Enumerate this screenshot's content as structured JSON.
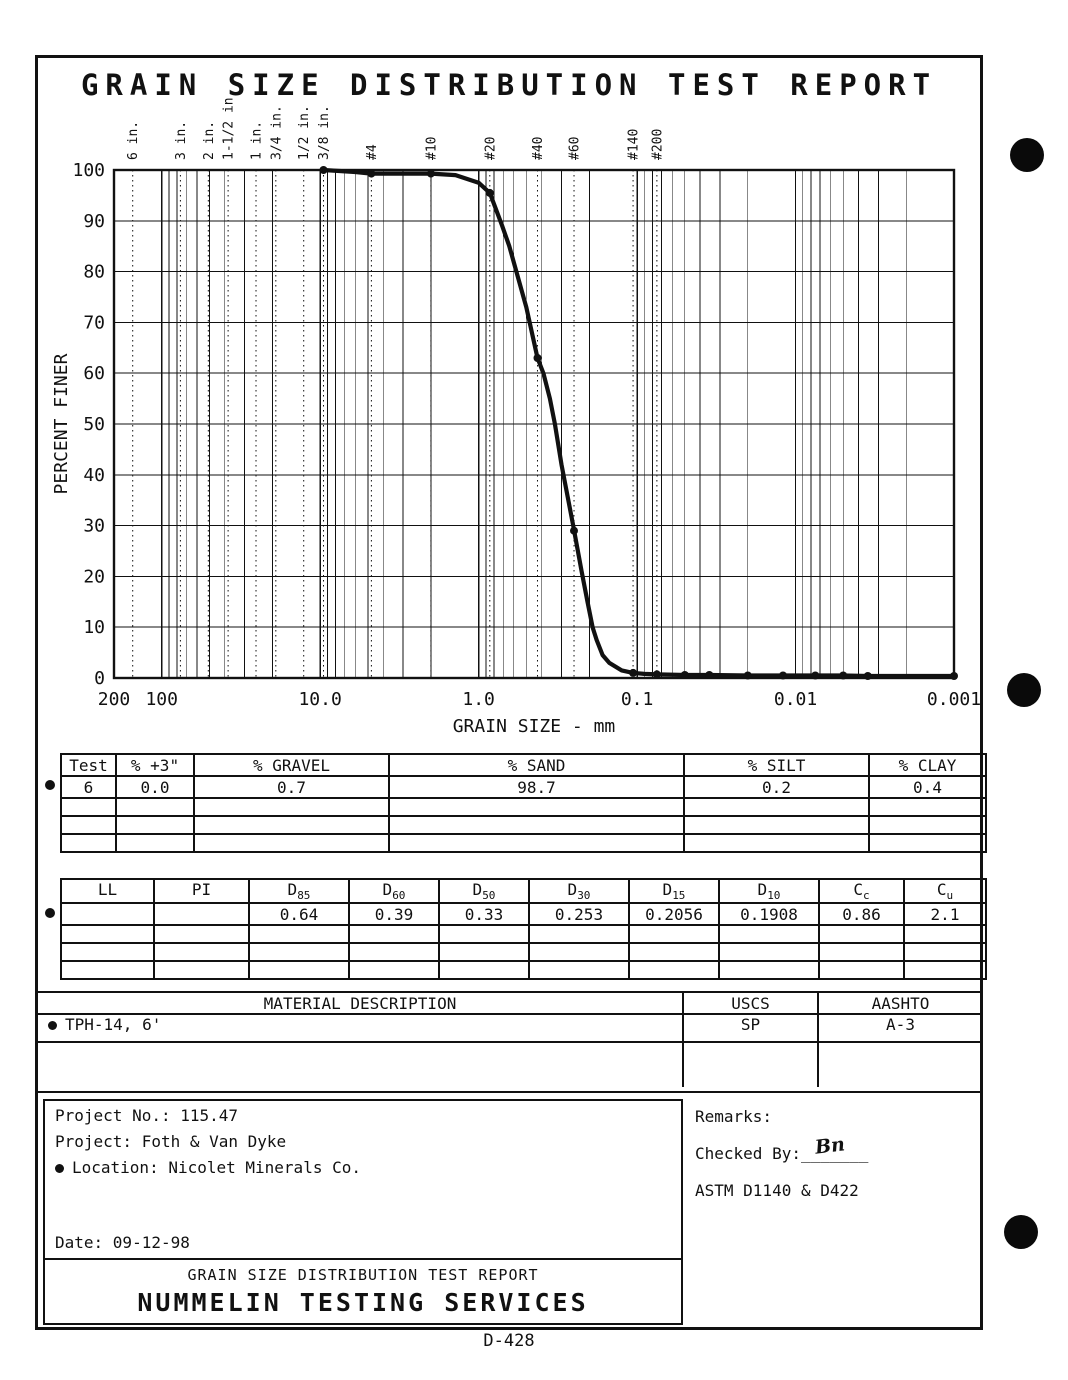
{
  "page": {
    "title": "GRAIN SIZE DISTRIBUTION TEST REPORT",
    "doc_code": "D-428"
  },
  "chart": {
    "ylabel": "PERCENT FINER",
    "xlabel": "GRAIN SIZE - mm",
    "y_ticks": [
      0,
      10,
      20,
      30,
      40,
      50,
      60,
      70,
      80,
      90,
      100
    ],
    "x_ticks": [
      {
        "label": "200",
        "value": 200
      },
      {
        "label": "100",
        "value": 100
      },
      {
        "label": "10.0",
        "value": 10
      },
      {
        "label": "1.0",
        "value": 1
      },
      {
        "label": "0.1",
        "value": 0.1
      },
      {
        "label": "0.01",
        "value": 0.01
      },
      {
        "label": "0.001",
        "value": 0.001
      }
    ],
    "sieves": [
      {
        "label": "6 in.",
        "mm": 152.4
      },
      {
        "label": "3 in.",
        "mm": 76.2
      },
      {
        "label": "2 in.",
        "mm": 50.8
      },
      {
        "label": "1-1/2 in.",
        "mm": 38.1
      },
      {
        "label": "1 in.",
        "mm": 25.4
      },
      {
        "label": "3/4 in.",
        "mm": 19.05
      },
      {
        "label": "1/2 in.",
        "mm": 12.7
      },
      {
        "label": "3/8 in.",
        "mm": 9.525
      },
      {
        "label": "#4",
        "mm": 4.75
      },
      {
        "label": "#10",
        "mm": 2.0
      },
      {
        "label": "#20",
        "mm": 0.85
      },
      {
        "label": "#40",
        "mm": 0.425
      },
      {
        "label": "#60",
        "mm": 0.25
      },
      {
        "label": "#140",
        "mm": 0.106
      },
      {
        "label": "#200",
        "mm": 0.075
      }
    ]
  },
  "chart_data": {
    "type": "line",
    "title": "GRAIN SIZE DISTRIBUTION TEST REPORT",
    "xlabel": "GRAIN SIZE - mm",
    "ylabel": "PERCENT FINER",
    "x_scale": "log",
    "x_range": [
      200,
      0.001
    ],
    "y_range": [
      0,
      100
    ],
    "grid": true,
    "series": [
      {
        "name": "Test 6",
        "symbol": "filled-circle",
        "points": [
          [
            9.525,
            100
          ],
          [
            6,
            99.6
          ],
          [
            4.75,
            99.3
          ],
          [
            2,
            99.3
          ],
          [
            1.4,
            99
          ],
          [
            1,
            97.5
          ],
          [
            0.85,
            95.5
          ],
          [
            0.71,
            89
          ],
          [
            0.64,
            85
          ],
          [
            0.5,
            73
          ],
          [
            0.425,
            63
          ],
          [
            0.39,
            60
          ],
          [
            0.355,
            55
          ],
          [
            0.33,
            50
          ],
          [
            0.3,
            42
          ],
          [
            0.253,
            30
          ],
          [
            0.224,
            21
          ],
          [
            0.2056,
            15
          ],
          [
            0.1908,
            10
          ],
          [
            0.18,
            7.5
          ],
          [
            0.165,
            4.5
          ],
          [
            0.15,
            3
          ],
          [
            0.125,
            1.5
          ],
          [
            0.106,
            1
          ],
          [
            0.09,
            0.8
          ],
          [
            0.075,
            0.7
          ],
          [
            0.05,
            0.6
          ],
          [
            0.035,
            0.6
          ],
          [
            0.02,
            0.5
          ],
          [
            0.012,
            0.5
          ],
          [
            0.0075,
            0.5
          ],
          [
            0.005,
            0.5
          ],
          [
            0.0035,
            0.4
          ],
          [
            0.001,
            0.4
          ]
        ],
        "markers": [
          [
            9.525,
            100
          ],
          [
            4.75,
            99.3
          ],
          [
            2,
            99.3
          ],
          [
            0.85,
            95.5
          ],
          [
            0.425,
            63
          ],
          [
            0.25,
            29
          ],
          [
            0.106,
            1
          ],
          [
            0.075,
            0.7
          ],
          [
            0.05,
            0.6
          ],
          [
            0.035,
            0.6
          ],
          [
            0.02,
            0.5
          ],
          [
            0.012,
            0.5
          ],
          [
            0.0075,
            0.5
          ],
          [
            0.005,
            0.5
          ],
          [
            0.0035,
            0.4
          ],
          [
            0.001,
            0.4
          ]
        ]
      }
    ]
  },
  "fractions_table": {
    "headers": [
      "Test",
      "% +3\"",
      "% GRAVEL",
      "% SAND",
      "% SILT",
      "% CLAY"
    ],
    "rows": [
      [
        "6",
        "0.0",
        "0.7",
        "98.7",
        "0.2",
        "0.4"
      ]
    ]
  },
  "params_table": {
    "headers": [
      {
        "b": "LL",
        "s": ""
      },
      {
        "b": "PI",
        "s": ""
      },
      {
        "b": "D",
        "s": "85"
      },
      {
        "b": "D",
        "s": "60"
      },
      {
        "b": "D",
        "s": "50"
      },
      {
        "b": "D",
        "s": "30"
      },
      {
        "b": "D",
        "s": "15"
      },
      {
        "b": "D",
        "s": "10"
      },
      {
        "b": "C",
        "s": "c"
      },
      {
        "b": "C",
        "s": "u"
      }
    ],
    "rows": [
      [
        "",
        "",
        "0.64",
        "0.39",
        "0.33",
        "0.253",
        "0.2056",
        "0.1908",
        "0.86",
        "2.1"
      ]
    ]
  },
  "material_table": {
    "headers": [
      "MATERIAL DESCRIPTION",
      "USCS",
      "AASHTO"
    ],
    "row": {
      "description": "TPH-14, 6'",
      "uscs": "SP",
      "aashto": "A-3"
    }
  },
  "project": {
    "project_no_line": "Project No.: 115.47",
    "project_line": "Project: Foth & Van Dyke",
    "location_line": "Location: Nicolet Minerals Co.",
    "date_line": "Date: 09-12-98"
  },
  "footer": {
    "report_title": "GRAIN SIZE DISTRIBUTION TEST REPORT",
    "company": "NUMMELIN TESTING SERVICES"
  },
  "remarks": {
    "label": "Remarks:",
    "checked_by_label": "Checked By:",
    "checked_by_blank": "_______",
    "signature": "Bn",
    "astm": "ASTM D1140 & D422"
  }
}
